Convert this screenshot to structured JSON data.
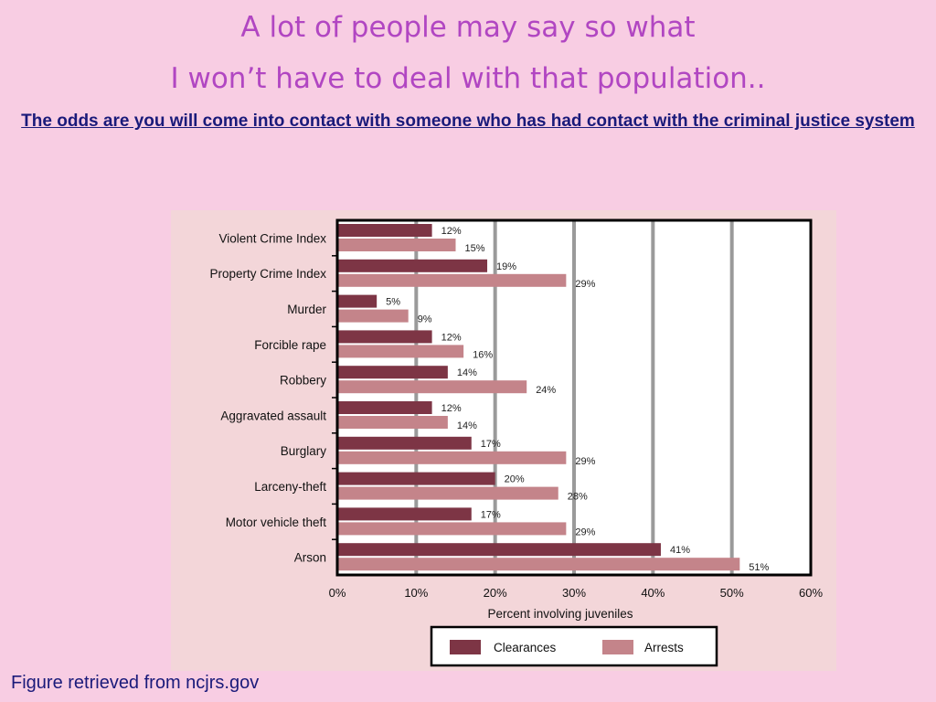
{
  "slide": {
    "title_line1": "A lot of people may say so what",
    "title_line2": "I won’t have to deal with that population..",
    "subtitle": "The odds are you will come into contact with someone who has had contact with the criminal justice system",
    "footer": "Figure retrieved from ncjrs.gov"
  },
  "colors": {
    "clearances": "#7d3545",
    "arrests": "#c4848a",
    "grid": "#9a9a9a",
    "plot_bg": "#ffffff"
  },
  "chart_data": {
    "type": "bar",
    "orientation": "horizontal",
    "categories": [
      "Violent Crime Index",
      "Property Crime Index",
      "Murder",
      "Forcible rape",
      "Robbery",
      "Aggravated assault",
      "Burglary",
      "Larceny-theft",
      "Motor vehicle theft",
      "Arson"
    ],
    "series": [
      {
        "name": "Clearances",
        "values": [
          12,
          19,
          5,
          12,
          14,
          12,
          17,
          20,
          17,
          41
        ]
      },
      {
        "name": "Arrests",
        "values": [
          15,
          29,
          9,
          16,
          24,
          14,
          29,
          28,
          29,
          51
        ]
      }
    ],
    "data_labels": {
      "Clearances": [
        "12%",
        "19%",
        "5%",
        "12%",
        "14%",
        "12%",
        "17%",
        "20%",
        "17%",
        "41%"
      ],
      "Arrests": [
        "15%",
        "29%",
        "9%",
        "16%",
        "24%",
        "14%",
        "29%",
        "28%",
        "29%",
        "51%"
      ]
    },
    "xlabel": "Percent involving juveniles",
    "xlim": [
      0,
      60
    ],
    "xticks": [
      "0%",
      "10%",
      "20%",
      "30%",
      "40%",
      "50%",
      "60%"
    ],
    "grid": true,
    "legend_position": "bottom"
  }
}
